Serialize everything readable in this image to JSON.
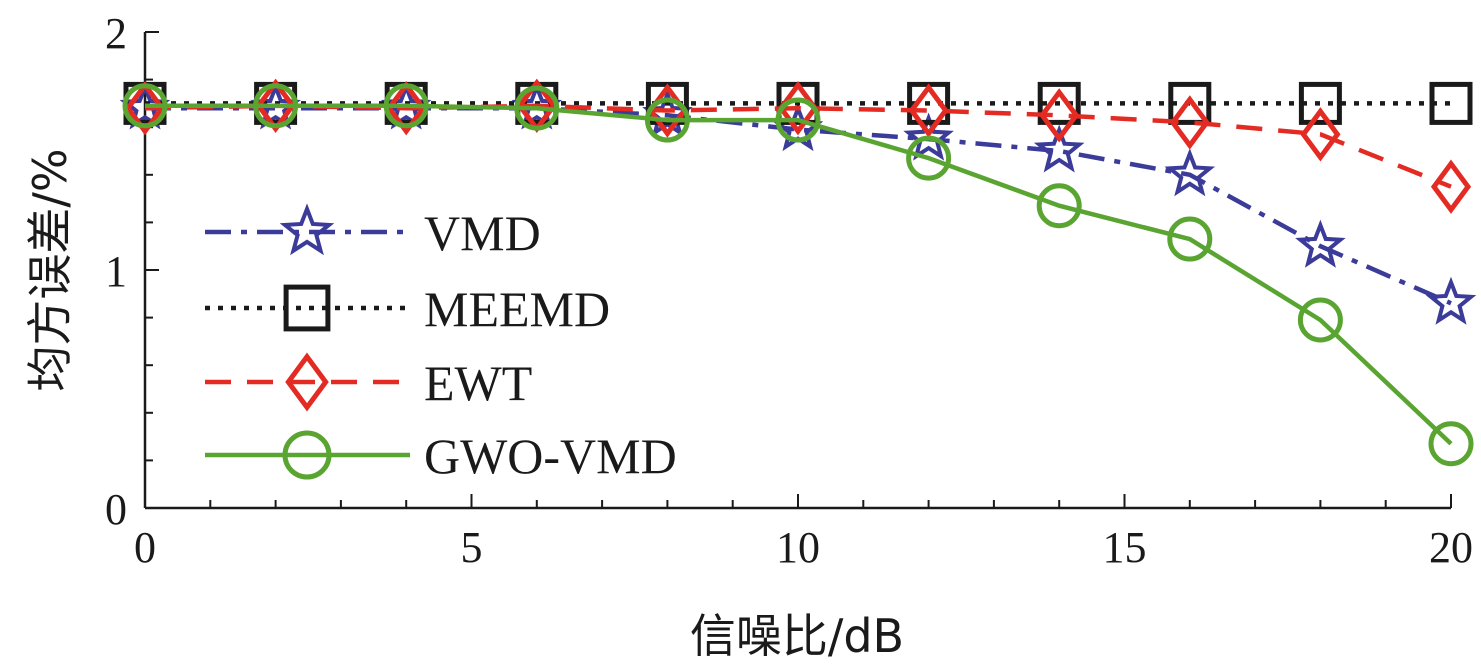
{
  "chart_data": {
    "type": "line",
    "title": "",
    "xlabel": "信噪比/dB",
    "ylabel": "均方误差/%",
    "xlim": [
      0,
      20
    ],
    "ylim": [
      0,
      2
    ],
    "xticks": [
      0,
      5,
      10,
      15,
      20
    ],
    "yticks": [
      0,
      1,
      2
    ],
    "x": [
      0,
      2,
      4,
      6,
      8,
      10,
      12,
      14,
      16,
      18,
      20
    ],
    "grid": false,
    "legend_position": "left",
    "series": [
      {
        "name": "VMD",
        "color": "#3b3b9a",
        "line_style": "dashdot",
        "marker": "star",
        "values": [
          1.68,
          1.68,
          1.68,
          1.68,
          1.65,
          1.59,
          1.55,
          1.5,
          1.4,
          1.1,
          0.86
        ]
      },
      {
        "name": "MEEMD",
        "color": "#1a1a1a",
        "line_style": "dotted",
        "marker": "square",
        "values": [
          1.7,
          1.7,
          1.7,
          1.7,
          1.7,
          1.7,
          1.7,
          1.7,
          1.7,
          1.7,
          1.7
        ]
      },
      {
        "name": "EWT",
        "color": "#e32b24",
        "line_style": "dashed",
        "marker": "diamond",
        "values": [
          1.68,
          1.69,
          1.68,
          1.69,
          1.67,
          1.68,
          1.67,
          1.65,
          1.62,
          1.57,
          1.35
        ]
      },
      {
        "name": "GWO-VMD",
        "color": "#5aa532",
        "line_style": "solid",
        "marker": "circle",
        "values": [
          1.69,
          1.69,
          1.69,
          1.68,
          1.63,
          1.63,
          1.47,
          1.27,
          1.13,
          0.79,
          0.27
        ]
      }
    ]
  }
}
